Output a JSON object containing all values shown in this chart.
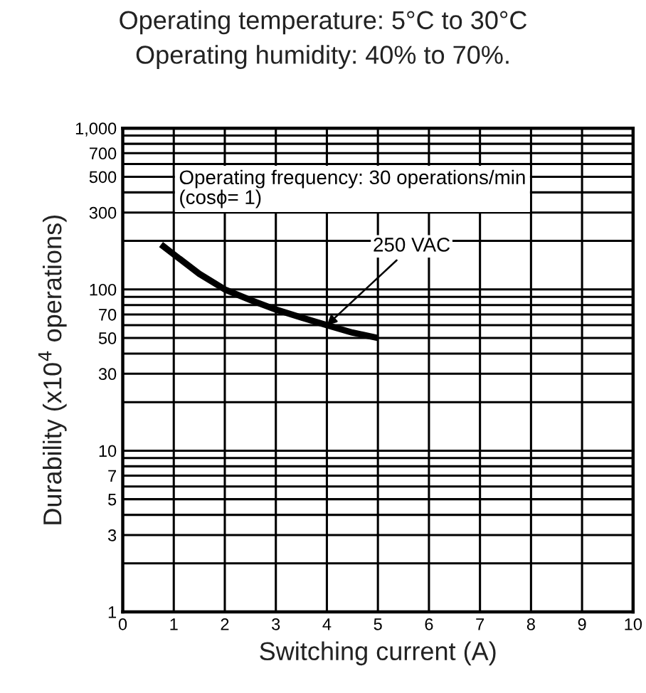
{
  "chart_data": {
    "type": "line",
    "title": "Operating temperature: 5°C to 30°C",
    "subtitle": "Operating humidity: 40% to 70%.",
    "xlabel": "Switching current (A)",
    "ylabel": "Durability (x10$^{4}$ operations)",
    "x": [
      0.75,
      1,
      1.5,
      2,
      2.5,
      3,
      3.5,
      4,
      4.5,
      5
    ],
    "series": [
      {
        "color": "#000000",
        "values": [
          190,
          165,
          125,
          100,
          86,
          75,
          67,
          60,
          54,
          50
        ]
      }
    ],
    "annotations": [
      "Operating frequency: 30 operations/min\n(cosϕ= 1)",
      {
        "text": "250 VAC",
        "x": 4,
        "y": 60
      }
    ],
    "log": "y",
    "xlim": [
      0,
      10
    ],
    "ylim": [
      1,
      1000
    ],
    "xticks": [
      0,
      1,
      2,
      3,
      4,
      5,
      6,
      7,
      8,
      9,
      10
    ],
    "yticks": [
      1,
      {
        "value": 2,
        "label": null
      },
      3,
      {
        "value": 4,
        "label": null
      },
      5,
      {
        "value": 6,
        "label": null
      },
      7,
      {
        "value": 8,
        "label": null
      },
      {
        "value": 9,
        "label": null
      },
      10,
      {
        "value": 20,
        "label": null
      },
      30,
      {
        "value": 40,
        "label": null
      },
      50,
      {
        "value": 60,
        "label": null
      },
      70,
      {
        "value": 80,
        "label": null
      },
      {
        "value": 90,
        "label": null
      },
      100,
      {
        "value": 200,
        "label": null
      },
      300,
      {
        "value": 400,
        "label": null
      },
      500,
      {
        "value": 600,
        "label": null
      },
      700,
      {
        "value": 800,
        "label": null
      },
      {
        "value": 900,
        "label": null
      },
      {
        "value": 1000,
        "label": "1,000"
      }
    ],
    "grid": true,
    "marker": "none",
    "line_style": "solid"
  }
}
